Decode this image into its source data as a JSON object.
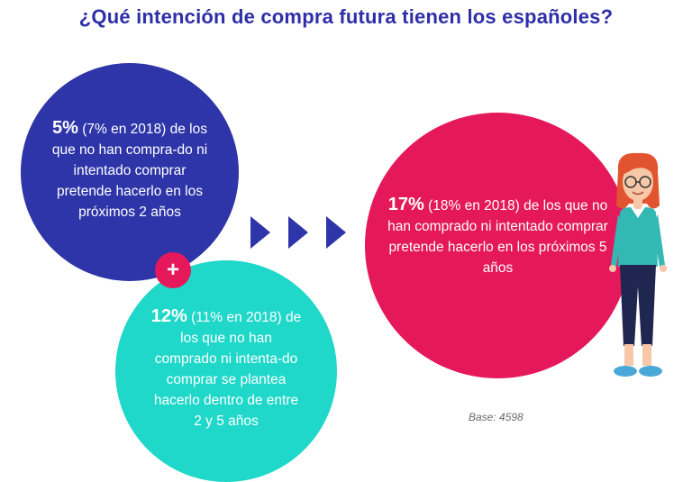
{
  "title": "¿Qué intención de compra futura tienen los españoles?",
  "blue_circle": {
    "pct": "5%",
    "rest": " (7% en 2018) de los que no han compra-do ni intentado comprar pretende hacerlo en los próximos 2 años"
  },
  "plus_sign": "+",
  "teal_circle": {
    "pct": "12%",
    "rest": " (11% en 2018) de los que no han comprado ni intenta-do comprar se plantea hacerlo dentro de entre 2 y 5 años"
  },
  "red_circle": {
    "pct": "17%",
    "rest": " (18% en 2018) de los que no han comprado ni intentado comprar pretende hacerlo en los próximos 5 años"
  },
  "base_note": "Base: 4598",
  "colors": {
    "title": "#2e2fa8",
    "blue": "#2e35a8",
    "teal": "#1fd8c9",
    "red": "#e5185b",
    "arrows": "#2e35a8"
  },
  "icons": [
    "chevron-right-icon",
    "person-illustration"
  ]
}
